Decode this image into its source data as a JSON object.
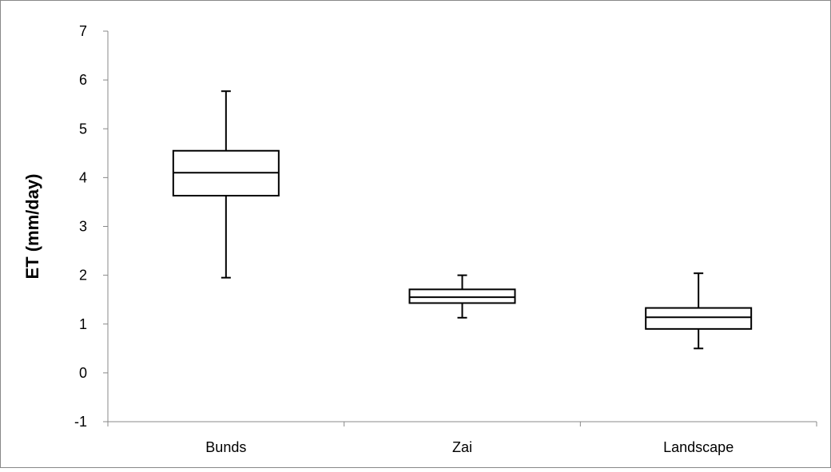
{
  "chart_data": {
    "type": "boxplot",
    "title": "",
    "xlabel": "",
    "ylabel": "ET (mm/day)",
    "ylim": [
      -1,
      7
    ],
    "yticks": [
      -1,
      0,
      1,
      2,
      3,
      4,
      5,
      6,
      7
    ],
    "grid": false,
    "legend": "none",
    "categories": [
      "Bunds",
      "Zai",
      "Landscape"
    ],
    "boxes": [
      {
        "category": "Bunds",
        "min": 1.95,
        "q1": 3.63,
        "median": 4.1,
        "q3": 4.55,
        "max": 5.77
      },
      {
        "category": "Zai",
        "min": 1.13,
        "q1": 1.43,
        "median": 1.55,
        "q3": 1.71,
        "max": 2.0
      },
      {
        "category": "Landscape",
        "min": 0.5,
        "q1": 0.9,
        "median": 1.14,
        "q3": 1.33,
        "max": 2.04
      }
    ]
  }
}
